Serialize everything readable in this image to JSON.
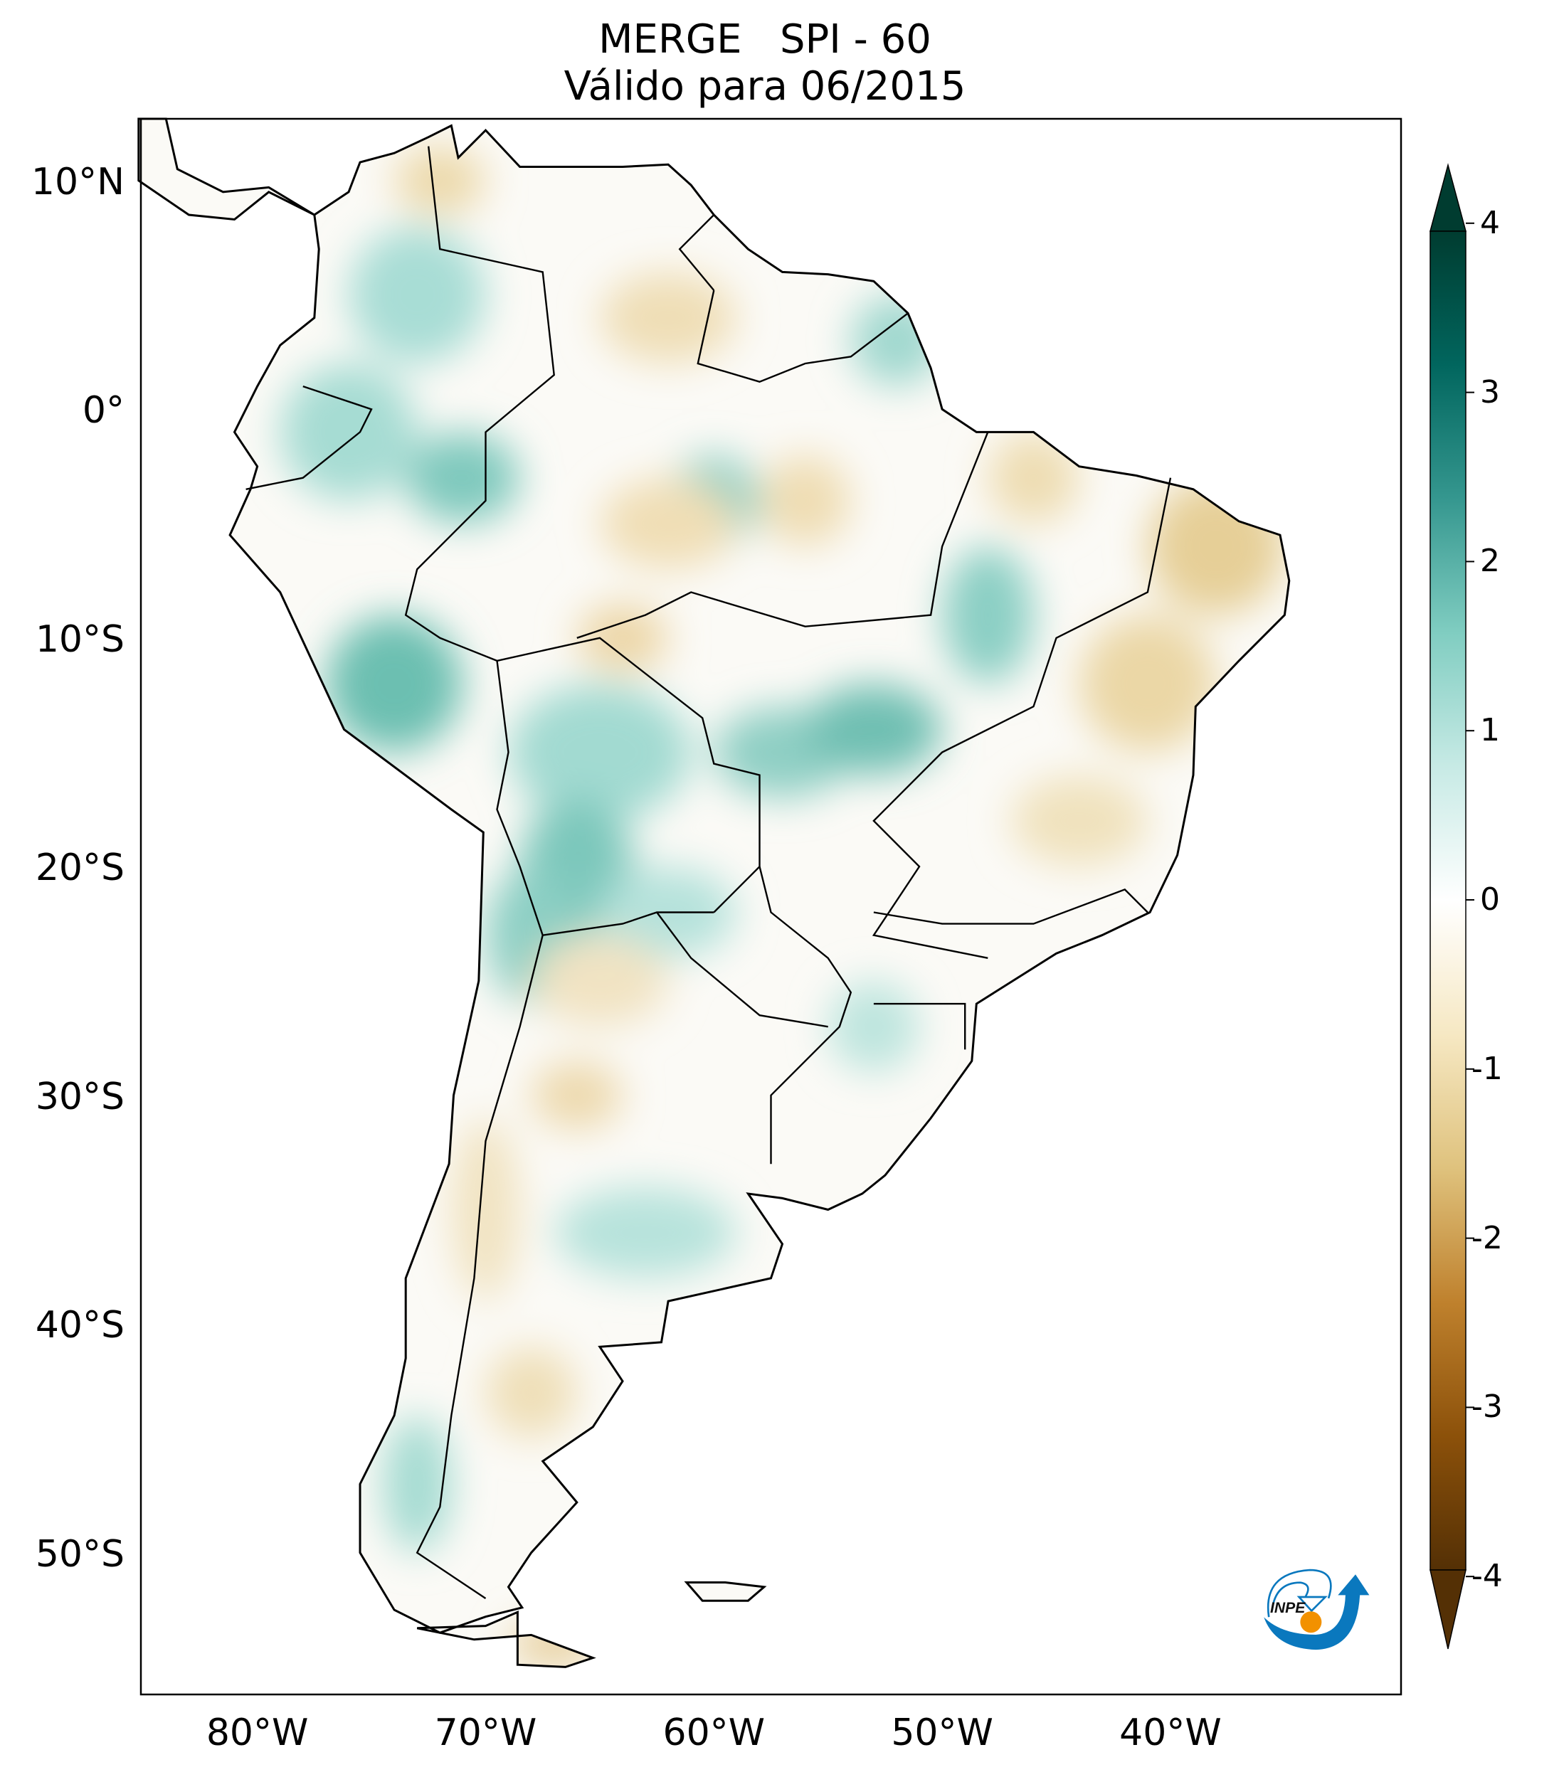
{
  "title": {
    "line1": "MERGE   SPI - 60",
    "line2": "Válido para 06/2015"
  },
  "map": {
    "lon_range": [
      -85.1,
      -29.9
    ],
    "lat_range": [
      -56.2,
      12.7
    ],
    "lat_ticks": [
      {
        "value": 10,
        "label": "10°N"
      },
      {
        "value": 0,
        "label": "0°"
      },
      {
        "value": -10,
        "label": "10°S"
      },
      {
        "value": -20,
        "label": "20°S"
      },
      {
        "value": -30,
        "label": "30°S"
      },
      {
        "value": -40,
        "label": "40°S"
      },
      {
        "value": -50,
        "label": "50°S"
      }
    ],
    "lon_ticks": [
      {
        "value": -80,
        "label": "80°W"
      },
      {
        "value": -70,
        "label": "70°W"
      },
      {
        "value": -60,
        "label": "60°W"
      },
      {
        "value": -50,
        "label": "50°W"
      },
      {
        "value": -40,
        "label": "40°W"
      }
    ]
  },
  "colorbar": {
    "range": [
      -4,
      4
    ],
    "ticks": [
      "4",
      "3",
      "2",
      "1",
      "0",
      "-1",
      "-2",
      "-3",
      "-4"
    ],
    "colors": [
      "#543005",
      "#8c510a",
      "#bf812d",
      "#dfc27d",
      "#f6e8c3",
      "#ffffff",
      "#c7eae5",
      "#80cdc1",
      "#35978f",
      "#01665e",
      "#003c30"
    ]
  },
  "logo": {
    "text": "INPE",
    "blue": "#0a78be",
    "orange": "#f29100"
  }
}
